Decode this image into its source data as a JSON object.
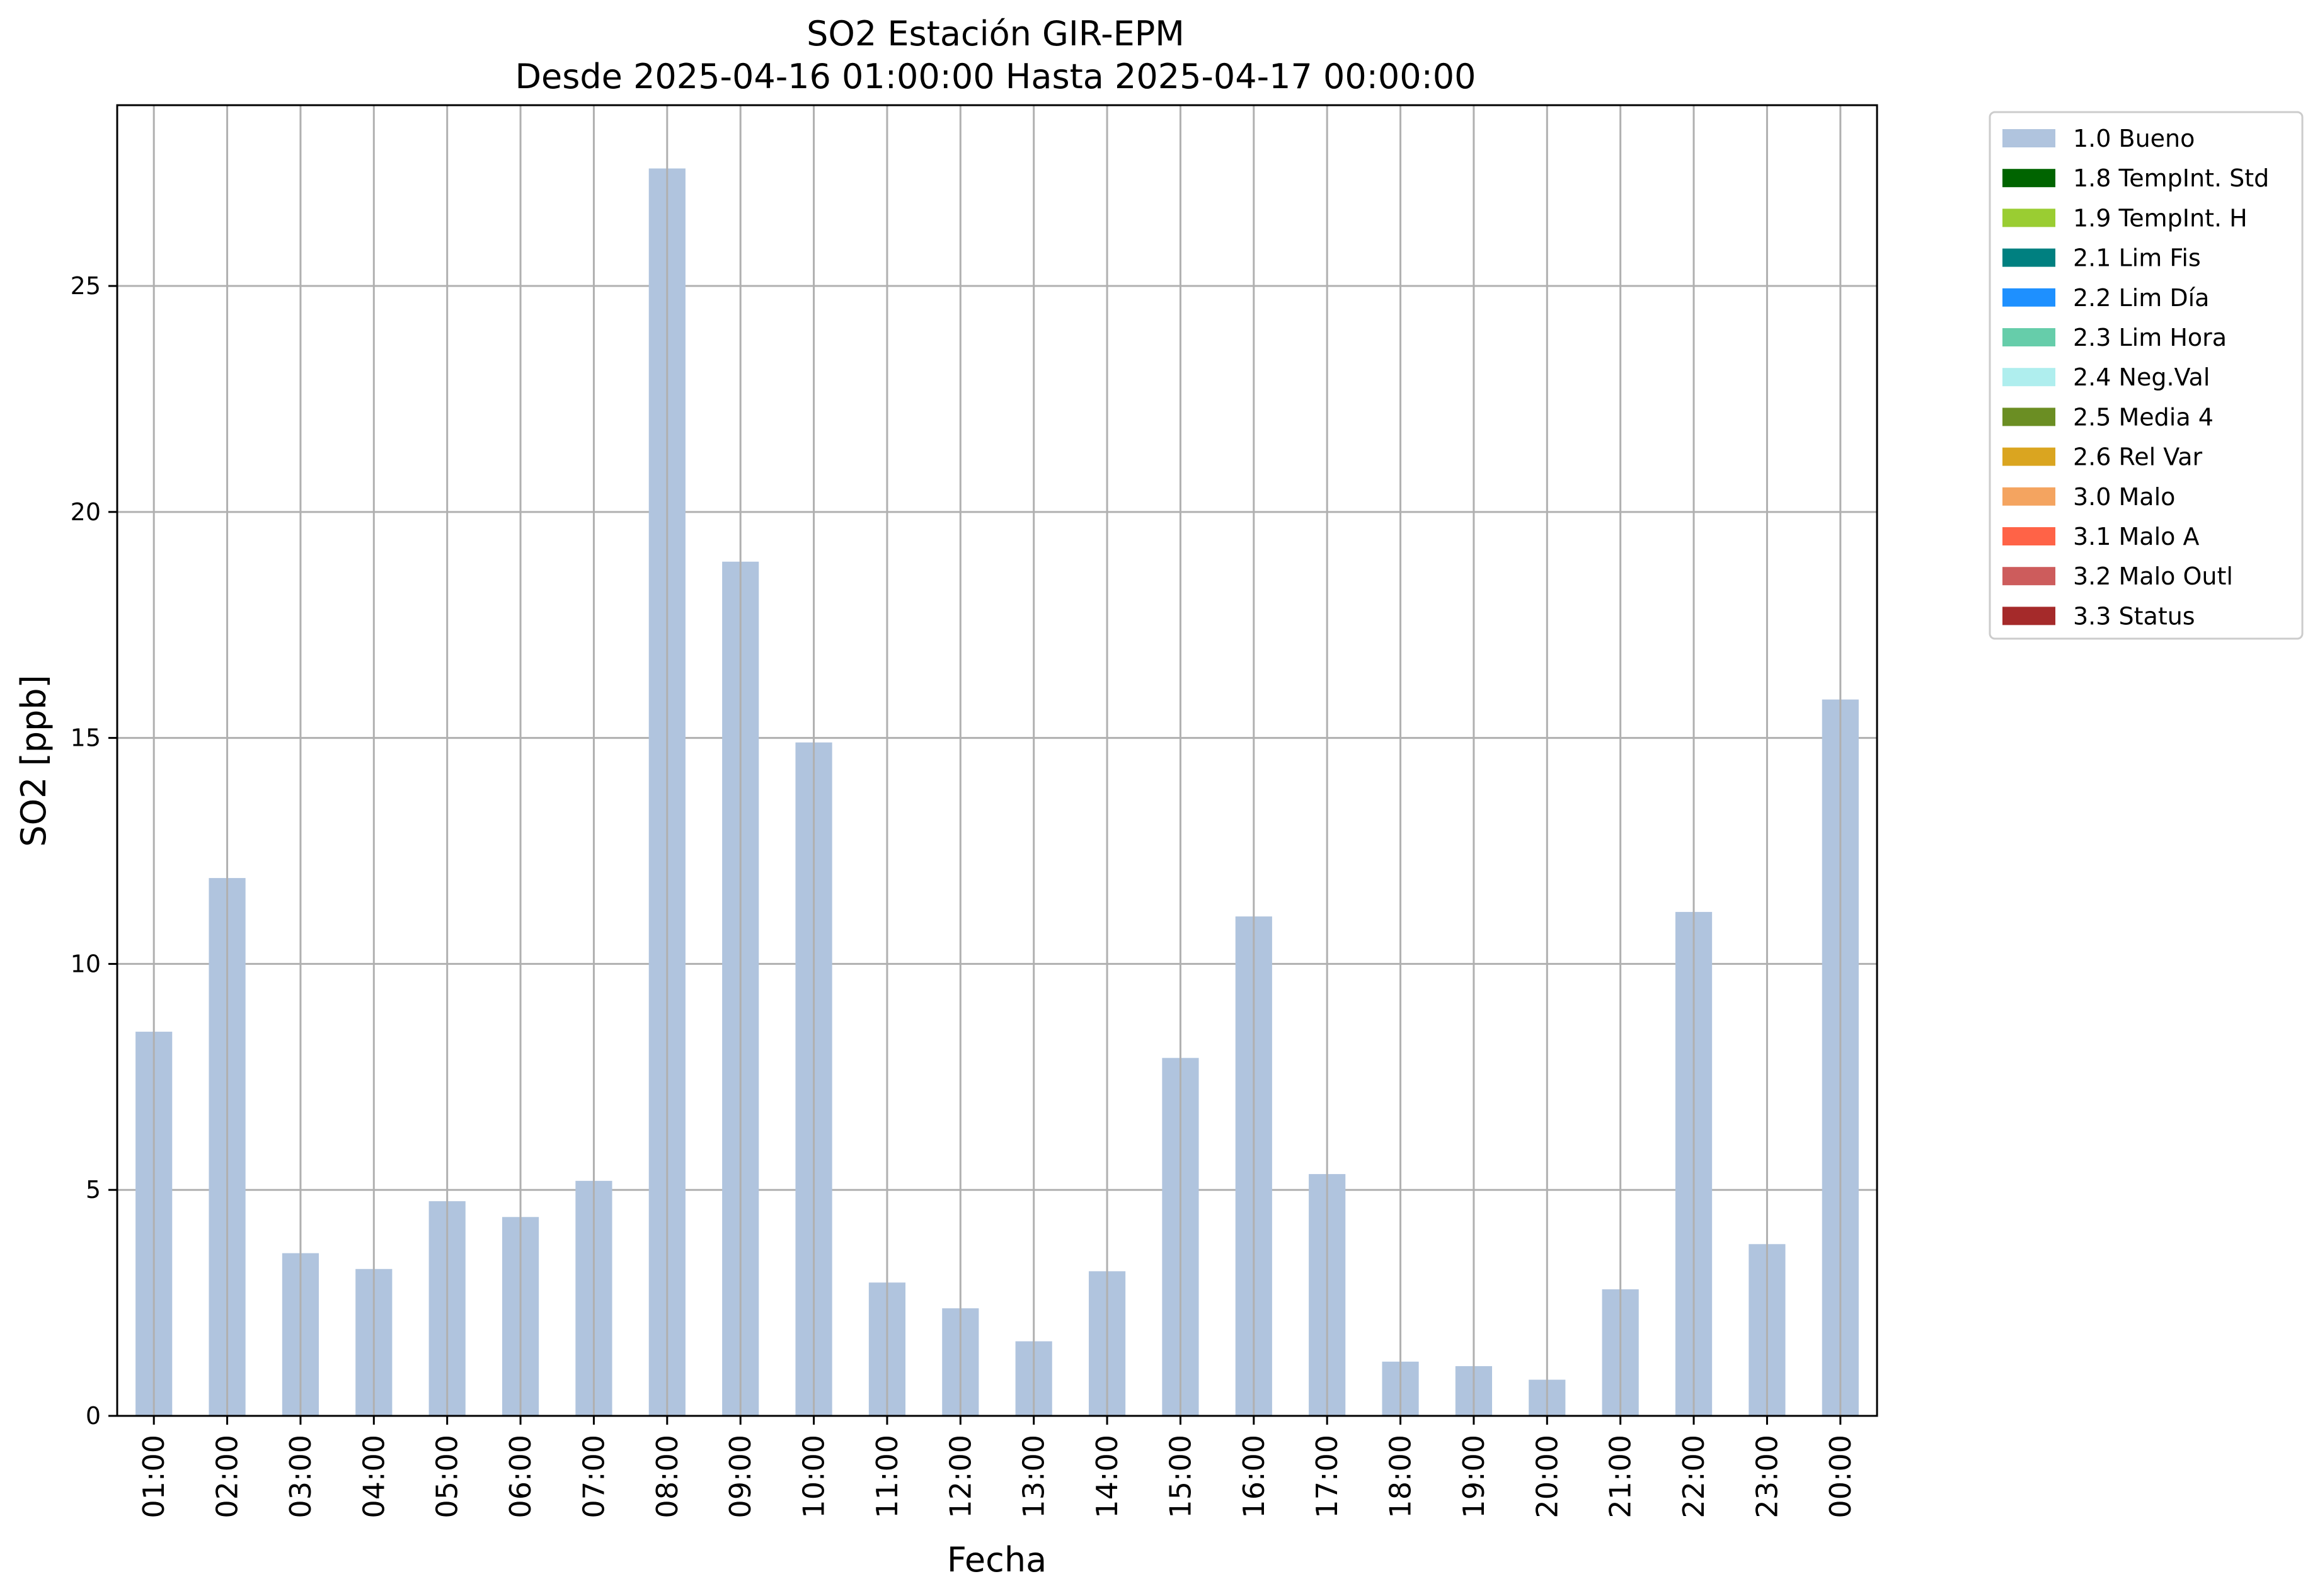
{
  "chart_data": {
    "type": "bar",
    "title": [
      "SO2 Estación GIR-EPM",
      "Desde 2025-04-16 01:00:00 Hasta 2025-04-17 00:00:00"
    ],
    "xlabel": "Fecha",
    "ylabel": "SO2 [ppb]",
    "ylim": [
      0,
      29
    ],
    "yticks": [
      0,
      5,
      10,
      15,
      20,
      25
    ],
    "grid": true,
    "legend_position": "outside-right-top",
    "categories": [
      "01:00",
      "02:00",
      "03:00",
      "04:00",
      "05:00",
      "06:00",
      "07:00",
      "08:00",
      "09:00",
      "10:00",
      "11:00",
      "12:00",
      "13:00",
      "14:00",
      "15:00",
      "16:00",
      "17:00",
      "18:00",
      "19:00",
      "20:00",
      "21:00",
      "22:00",
      "23:00",
      "00:00"
    ],
    "series": [
      {
        "name": "1.0 Bueno",
        "color": "#b0c4de",
        "values": [
          8.5,
          11.9,
          3.6,
          3.25,
          4.75,
          4.4,
          5.2,
          27.6,
          18.9,
          14.9,
          2.95,
          2.38,
          1.65,
          3.2,
          7.92,
          11.05,
          5.35,
          1.2,
          1.1,
          0.8,
          2.8,
          11.15,
          3.8,
          15.85
        ]
      }
    ],
    "legend": [
      {
        "label": "1.0 Bueno",
        "color": "#b0c4de"
      },
      {
        "label": "1.8 TempInt. Std",
        "color": "#006400"
      },
      {
        "label": "1.9 TempInt. H",
        "color": "#9acd32"
      },
      {
        "label": "2.1 Lim Fis",
        "color": "#008080"
      },
      {
        "label": "2.2 Lim Día",
        "color": "#1e90ff"
      },
      {
        "label": "2.3 Lim Hora",
        "color": "#66cdaa"
      },
      {
        "label": "2.4 Neg.Val",
        "color": "#afeeee"
      },
      {
        "label": "2.5 Media 4",
        "color": "#6b8e23"
      },
      {
        "label": "2.6 Rel Var",
        "color": "#daa520"
      },
      {
        "label": "3.0 Malo",
        "color": "#f4a460"
      },
      {
        "label": "3.1 Malo A",
        "color": "#ff6347"
      },
      {
        "label": "3.2 Malo Outl",
        "color": "#cd5c5c"
      },
      {
        "label": "3.3 Status",
        "color": "#a52a2a"
      }
    ]
  }
}
